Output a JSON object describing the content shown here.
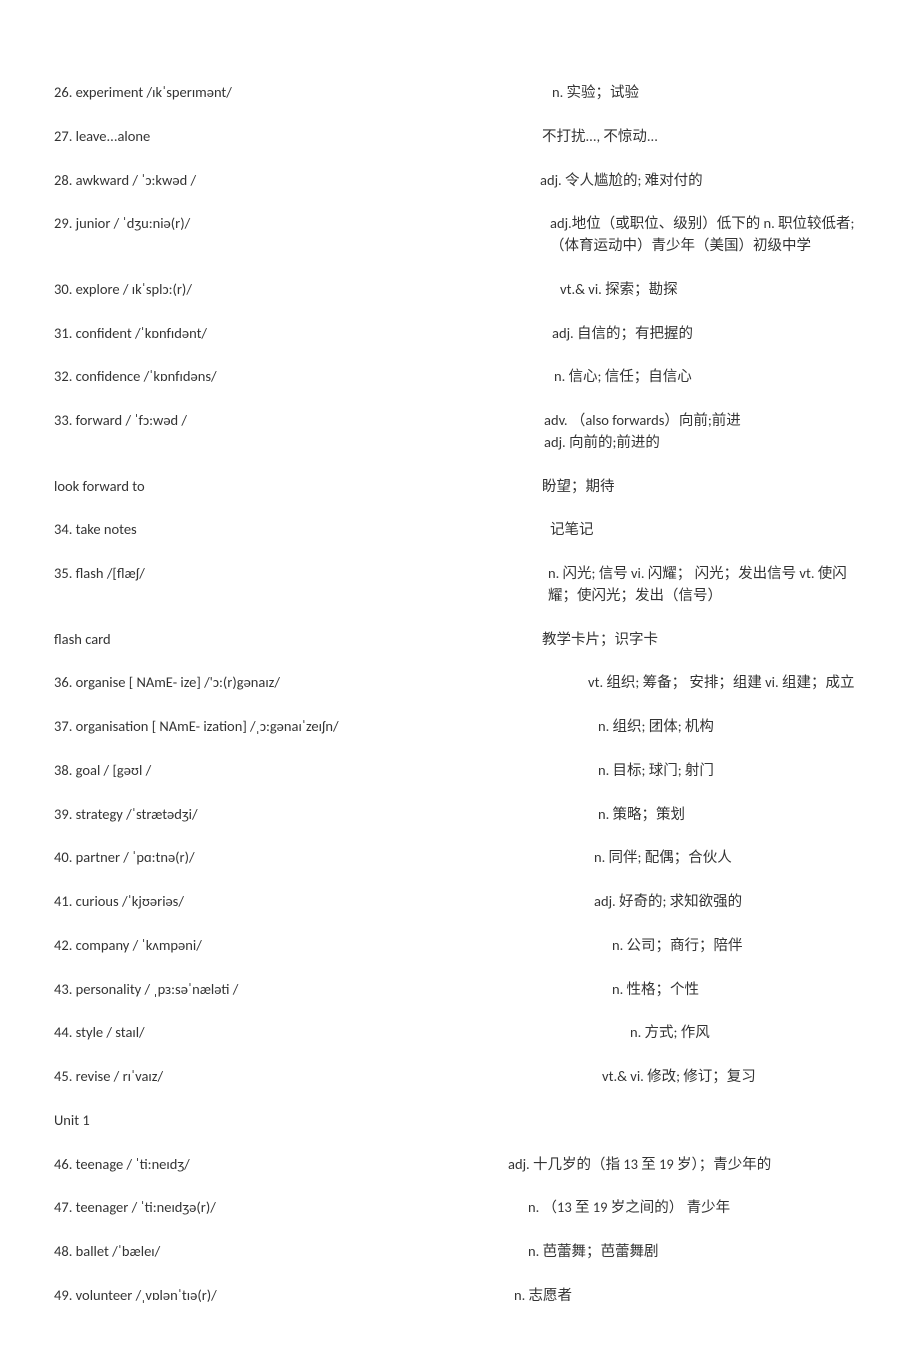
{
  "text_color": "#333333",
  "background_color": "#ffffff",
  "font_size_pt": 11,
  "entries": [
    {
      "l": "26. experiment /ɪkˈsperɪmənt/",
      "r": "n. 实验；试验",
      "indent": 58
    },
    {
      "l": "27. leave...alone",
      "r": "不打扰..., 不惊动...",
      "indent": 48
    },
    {
      "l": "28. awkward / ˈɔ:kwəd /",
      "r": "adj. 令人尴尬的; 难对付的",
      "indent": 46
    },
    {
      "l": "29. junior / ˈdʒu:niə(r)/",
      "r": "adj.地位（或职位、级别）低下的  n. 职位较低者; （体育运动中）青少年（美国）初级中学",
      "indent": 56
    },
    {
      "l": "30. explore / ɪkˈsplɔ:(r)/",
      "r": "vt.& vi.  探索；勘探",
      "indent": 66
    },
    {
      "l": "31. confident /ˈkɒnfɪdənt/",
      "r": "adj. 自信的；有把握的",
      "indent": 58
    },
    {
      "l": "32. confidence /ˈkɒnfɪdəns/",
      "r": "n. 信心; 信任；自信心",
      "indent": 60
    },
    {
      "l": "33. forward / ˈfɔ:wəd /",
      "r": "adv. （also forwards）向前;前进<br>adj. 向前的;前进的",
      "indent": 50
    },
    {
      "l": "look forward to",
      "r": "盼望；期待",
      "indent": 48
    },
    {
      "l": "34. take notes",
      "r": "记笔记",
      "indent": 56
    },
    {
      "l": "35. flash /[flæʃ/",
      "r": "n. 闪光; 信号  vi. 闪耀；  闪光；发出信号  vt. 使闪耀；使闪光；发出（信号）",
      "indent": 54
    },
    {
      "l": "flash card",
      "r": "教学卡片；识字卡",
      "indent": 48
    },
    {
      "l": "36. organise    [ NAmE- ize] /'ɔ:(r)gənaɪz/",
      "r": "vt. 组织;    筹备；   安排；组建  vi. 组建；成立",
      "indent": 94
    },
    {
      "l": "37. organisation    [ NAmE- ization]   /ˌɔ:gənaɪˈzeɪʃn/",
      "r": "n.   组织; 团体; 机构",
      "indent": 104
    },
    {
      "l": "38. goal /  [gəʊl /",
      "r": "n.   目标; 球门;   射门",
      "indent": 104
    },
    {
      "l": "39. strategy /ˈstrætədʒi/",
      "r": "n.   策略；策划",
      "indent": 104
    },
    {
      "l": "40. partner /  ˈpɑ:tnə(r)/",
      "r": "n. 同伴; 配偶；合伙人",
      "indent": 100
    },
    {
      "l": "41. curious /ˈkjʊəriəs/",
      "r": "adj.   好奇的; 求知欲强的",
      "indent": 100
    },
    {
      "l": "42. company /  ˈkʌmpəni/",
      "r": "n.   公司；商行；陪伴",
      "indent": 118
    },
    {
      "l": "43. personality /  ˌpɜ:səˈnæləti /",
      "r": "n.   性格；个性",
      "indent": 118
    },
    {
      "l": "44. style /  staɪl/",
      "r": "n.   方式; 作风",
      "indent": 136
    },
    {
      "l": "45. revise /  rɪˈvaɪz/",
      "r": "vt.& vi.   修改; 修订；复习",
      "indent": 108
    }
  ],
  "heading": "Unit  1",
  "entries2": [
    {
      "l": "46. teenage /  ˈti:neɪdʒ/",
      "r": "adj.   十几岁的（指 13 至 19 岁）；青少年的",
      "indent": 14
    },
    {
      "l": "47. teenager /  ˈti:neɪdʒə(r)/",
      "r": "n.  （13 至 19 岁之间的）  青少年",
      "indent": 34
    },
    {
      "l": "48. ballet /ˈbæleɪ/",
      "r": "n.   芭蕾舞；芭蕾舞剧",
      "indent": 34
    },
    {
      "l": "49. volunteer /ˌvɒlənˈtɪə(r)/",
      "r": "n.   志愿者",
      "indent": 20
    }
  ]
}
